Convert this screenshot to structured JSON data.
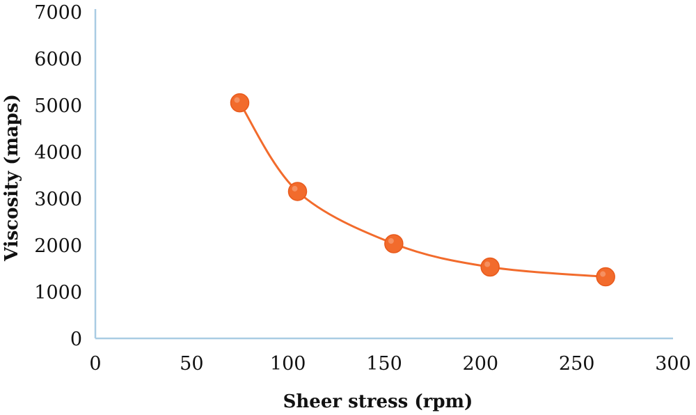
{
  "chart_data": {
    "type": "scatter",
    "title": "",
    "xlabel": "Sheer stress (rpm)",
    "ylabel": "Viscosity (maps)",
    "xlim": [
      0,
      300
    ],
    "ylim": [
      0,
      7000
    ],
    "x_ticks": [
      0,
      50,
      100,
      150,
      200,
      250,
      300
    ],
    "y_ticks": [
      0,
      1000,
      2000,
      3000,
      4000,
      5000,
      6000,
      7000
    ],
    "grid": false,
    "legend": "none",
    "smoothed_line": true,
    "series": [
      {
        "color": "#F26B2C",
        "x": [
          75,
          105,
          155,
          205,
          265
        ],
        "y": [
          5050,
          3150,
          2030,
          1530,
          1320
        ]
      }
    ]
  },
  "colors": {
    "axis": "#A9CCE3",
    "series": "#F26B2C",
    "text": "#111111"
  }
}
